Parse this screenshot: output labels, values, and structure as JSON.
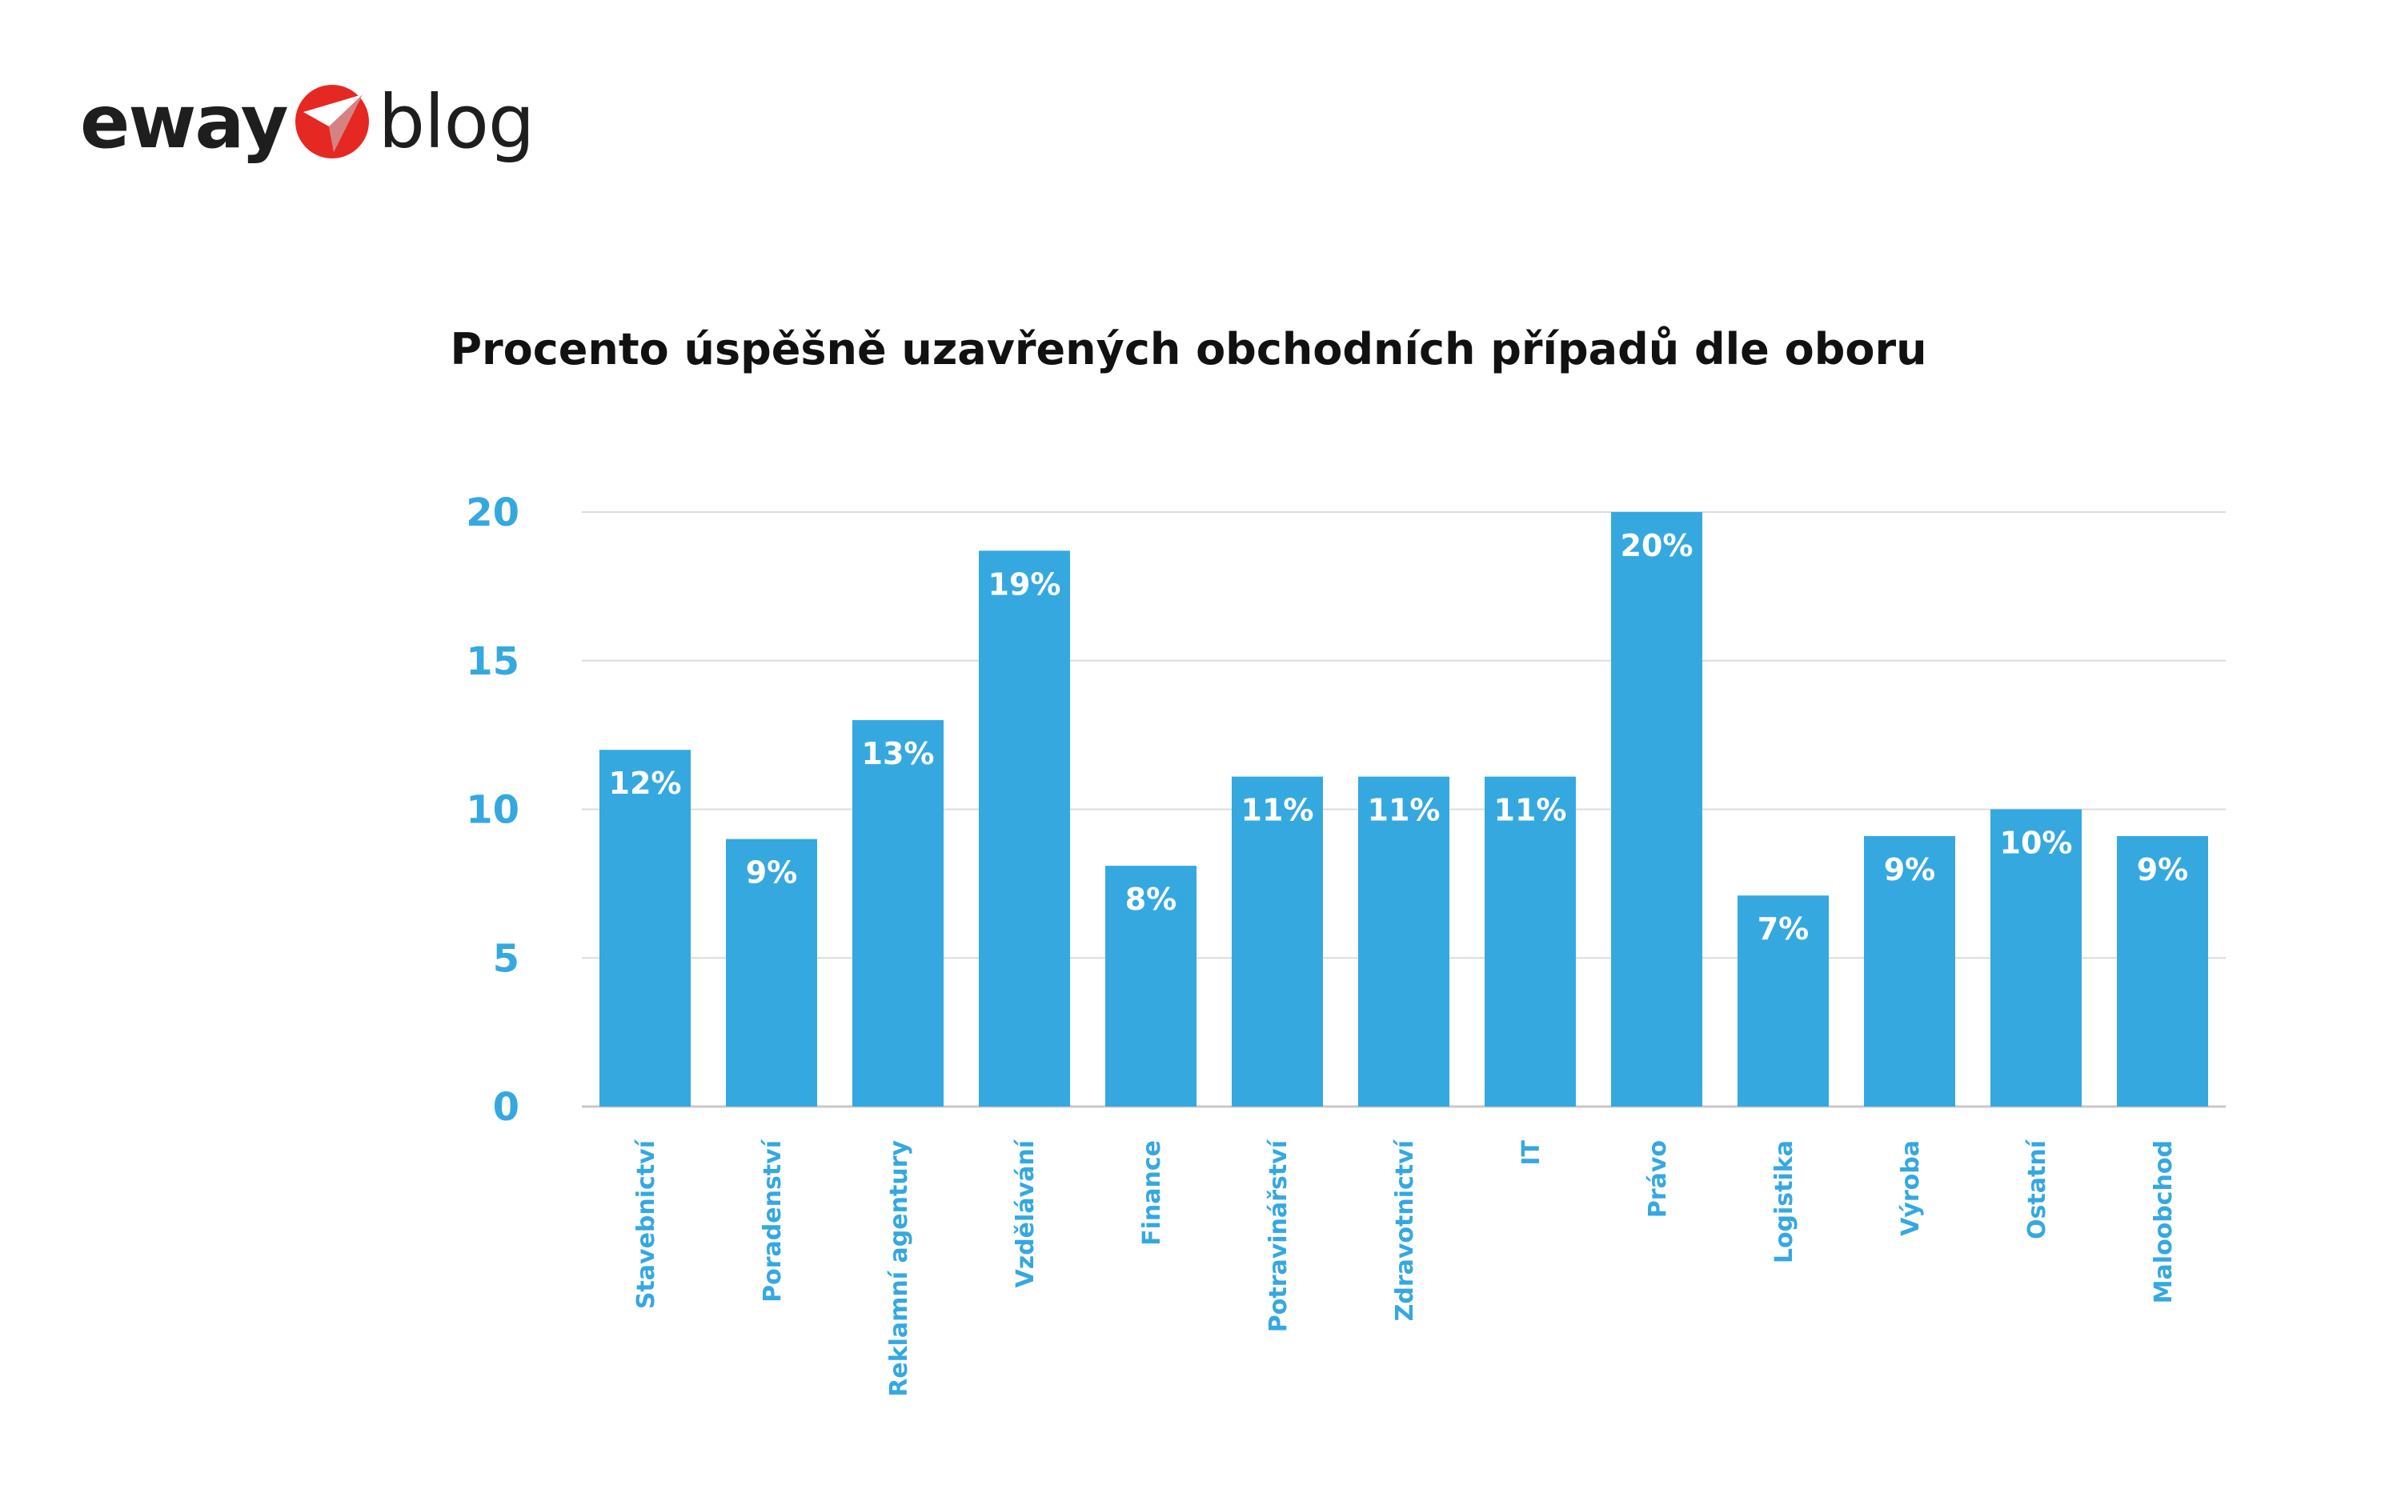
{
  "brand": {
    "name": "eway",
    "section": "blog",
    "accent_color": "#e52822",
    "mark_icon": "paper-plane-icon"
  },
  "chart_data": {
    "type": "bar",
    "title": "Procento úspěšně uzavřených obchodních případů dle oboru",
    "xlabel": "",
    "ylabel": "",
    "ylim": [
      0,
      20
    ],
    "yticks": [
      0,
      5,
      10,
      15,
      20
    ],
    "grid": true,
    "legend": "none",
    "bar_color": "#35a8e0",
    "categories": [
      "Stavebnictví",
      "Poradenství",
      "Reklamní agentury",
      "Vzdělávání",
      "Finance",
      "Potravinářství",
      "Zdravotnictví",
      "IT",
      "Právo",
      "Logistika",
      "Výroba",
      "Ostatní",
      "Maloobchod"
    ],
    "values": [
      12,
      9,
      13,
      18.7,
      8.1,
      11.1,
      11.1,
      11.1,
      20,
      7.1,
      9.1,
      10,
      9.1
    ],
    "data_labels": [
      "12%",
      "9%",
      "13%",
      "19%",
      "8%",
      "11%",
      "11%",
      "11%",
      "20%",
      "7%",
      "9%",
      "10%",
      "9%"
    ]
  }
}
